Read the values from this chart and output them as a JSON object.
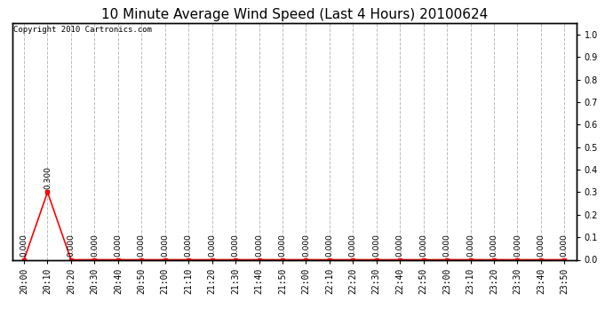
{
  "title": "10 Minute Average Wind Speed (Last 4 Hours) 20100624",
  "copyright_text": "Copyright 2010 Cartronics.com",
  "x_labels": [
    "20:00",
    "20:10",
    "20:20",
    "20:30",
    "20:40",
    "20:50",
    "21:00",
    "21:10",
    "21:20",
    "21:30",
    "21:40",
    "21:50",
    "22:00",
    "22:10",
    "22:20",
    "22:30",
    "22:40",
    "22:50",
    "23:00",
    "23:10",
    "23:20",
    "23:30",
    "23:40",
    "23:50"
  ],
  "y_values": [
    0.0,
    0.3,
    0.0,
    0.0,
    0.0,
    0.0,
    0.0,
    0.0,
    0.0,
    0.0,
    0.0,
    0.0,
    0.0,
    0.0,
    0.0,
    0.0,
    0.0,
    0.0,
    0.0,
    0.0,
    0.0,
    0.0,
    0.0,
    0.0
  ],
  "line_color": "#ff0000",
  "marker": "s",
  "marker_size": 2.5,
  "ylim": [
    0.0,
    1.05
  ],
  "yticks_right": [
    0.0,
    0.1,
    0.2,
    0.3,
    0.4,
    0.5,
    0.6,
    0.7,
    0.8,
    0.9,
    1.0
  ],
  "bg_color": "#ffffff",
  "plot_bg_color": "#ffffff",
  "grid_color": "#bbbbbb",
  "grid_style": "--",
  "title_fontsize": 11,
  "tick_fontsize": 7,
  "annotation_fontsize": 6.5,
  "annotation_rotation": 90
}
